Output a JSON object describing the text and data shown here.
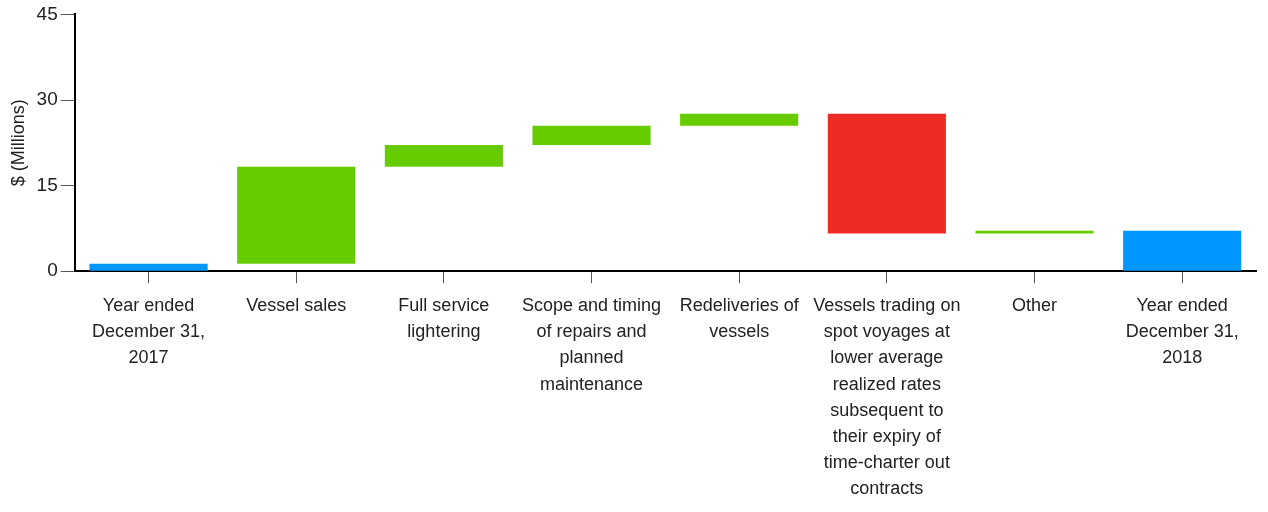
{
  "chart_data": {
    "type": "bar",
    "ylabel": "$ (Millions)",
    "categories": [
      "Year ended December 31, 2017",
      "Vessel sales",
      "Full service lightering",
      "Scope and timing of repairs and planned maintenance",
      "Redeliveries of vessels",
      "Vessels trading on spot voyages at lower average realized rates subsequent to their expiry of time-charter out contracts",
      "Other",
      "Year ended December 31, 2018"
    ],
    "values": [
      1.3,
      17,
      3.8,
      3.4,
      2.1,
      -21,
      0.5,
      7.1
    ],
    "base": [
      0,
      1.3,
      18.3,
      22.1,
      25.5,
      27.6,
      6.6,
      0
    ],
    "colors": [
      "#0096ff",
      "#66cc00",
      "#66cc00",
      "#66cc00",
      "#66cc00",
      "#ee2a24",
      "#66cc00",
      "#0096ff"
    ],
    "ylim": [
      0,
      45
    ],
    "yticks": [
      0,
      15,
      30,
      45
    ],
    "grid": false,
    "legend": false
  }
}
